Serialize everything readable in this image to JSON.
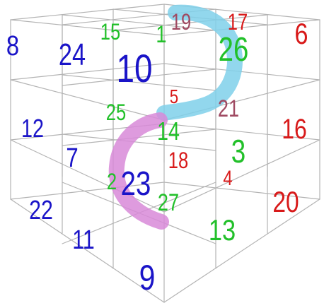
{
  "colors": {
    "blue": "#1a14c8",
    "green": "#22c02a",
    "red": "#d81a1a",
    "mauve": "#a04a62",
    "grid": "#b4b4b4",
    "cyan_band": "#7fd0ea",
    "magenta_band": "#d88ad8"
  },
  "numbers": [
    {
      "id": "n8",
      "text": "8",
      "color": "blue"
    },
    {
      "id": "n24",
      "text": "24",
      "color": "blue"
    },
    {
      "id": "n15",
      "text": "15",
      "color": "green"
    },
    {
      "id": "n1",
      "text": "1",
      "color": "green"
    },
    {
      "id": "n10",
      "text": "10",
      "color": "blue"
    },
    {
      "id": "n19",
      "text": "19",
      "color": "mauve"
    },
    {
      "id": "n17",
      "text": "17",
      "color": "red"
    },
    {
      "id": "n26",
      "text": "26",
      "color": "green"
    },
    {
      "id": "n6",
      "text": "6",
      "color": "red"
    },
    {
      "id": "n5",
      "text": "5",
      "color": "red"
    },
    {
      "id": "n25",
      "text": "25",
      "color": "green"
    },
    {
      "id": "n21",
      "text": "21",
      "color": "mauve"
    },
    {
      "id": "n16",
      "text": "16",
      "color": "red"
    },
    {
      "id": "n12",
      "text": "12",
      "color": "blue"
    },
    {
      "id": "n14",
      "text": "14",
      "color": "green"
    },
    {
      "id": "n7",
      "text": "7",
      "color": "blue"
    },
    {
      "id": "n3",
      "text": "3",
      "color": "green"
    },
    {
      "id": "n18",
      "text": "18",
      "color": "red"
    },
    {
      "id": "n2",
      "text": "2",
      "color": "green"
    },
    {
      "id": "n23",
      "text": "23",
      "color": "blue"
    },
    {
      "id": "n4",
      "text": "4",
      "color": "red"
    },
    {
      "id": "n27",
      "text": "27",
      "color": "green"
    },
    {
      "id": "n20",
      "text": "20",
      "color": "red"
    },
    {
      "id": "n22",
      "text": "22",
      "color": "blue"
    },
    {
      "id": "n11",
      "text": "11",
      "color": "blue"
    },
    {
      "id": "n13",
      "text": "13",
      "color": "green"
    },
    {
      "id": "n9",
      "text": "9",
      "color": "blue"
    }
  ]
}
